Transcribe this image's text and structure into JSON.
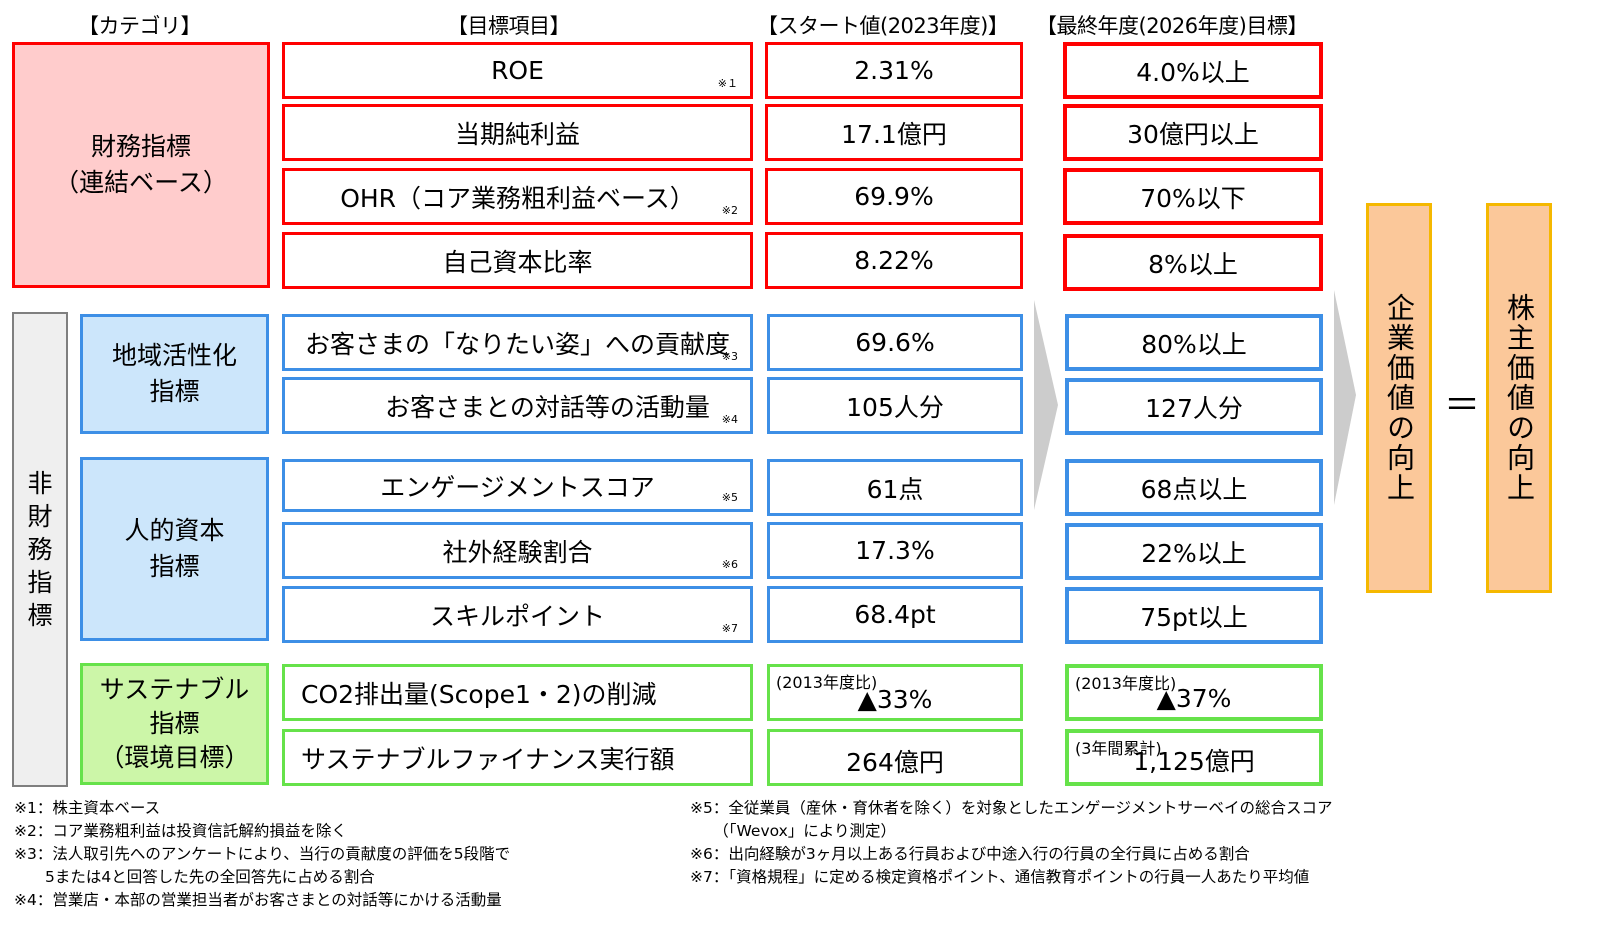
{
  "headers": {
    "category": "【カテゴリ】",
    "item": "【目標項目】",
    "start": "【スタート値(2023年度)】",
    "target": "【最終年度(2026年度)目標】"
  },
  "categories": {
    "financial": "財務指標\n（連結ベース）",
    "nonfinancial": "非\n財\n務\n指\n標",
    "regional": "地域活性化\n指標",
    "human": "人的資本\n指標",
    "sustainable": "サステナブル\n指標\n（環境目標）"
  },
  "rows": [
    {
      "item": "ROE",
      "note": "※１",
      "start": "2.31%",
      "target": "4.0%以上"
    },
    {
      "item": "当期純利益",
      "note": "",
      "start": "17.1億円",
      "target": "30億円以上"
    },
    {
      "item": "OHR（コア業務粗利益ベース）",
      "note": "※2",
      "start": "69.9%",
      "target": "70%以下"
    },
    {
      "item": "自己資本比率",
      "note": "",
      "start": "8.22%",
      "target": "8%以上"
    },
    {
      "item": "お客さまの「なりたい姿」への貢献度",
      "note": "※3",
      "start": "69.6%",
      "target": "80%以上"
    },
    {
      "item": "お客さまとの対話等の活動量",
      "note": "※4",
      "start": "105人分",
      "target": "127人分"
    },
    {
      "item": "エンゲージメントスコア",
      "note": "※5",
      "start": "61点",
      "target": "68点以上"
    },
    {
      "item": "社外経験割合",
      "note": "※6",
      "start": "17.3%",
      "target": "22%以上"
    },
    {
      "item": "スキルポイント",
      "note": "※7",
      "start": "68.4pt",
      "target": "75pt以上"
    },
    {
      "item": "CO2排出量(Scope1・2)の削減",
      "note": "",
      "start_pre": "(2013年度比)",
      "start": "▲33%",
      "target_pre": "(2013年度比)",
      "target": "▲37%"
    },
    {
      "item": "サステナブルファイナンス実行額",
      "note": "",
      "start": "264億円",
      "target_pre": "(3年間累計)",
      "target": "1,125億円"
    }
  ],
  "outcomes": {
    "corporate": "企業価値の向上",
    "equals": "＝",
    "shareholder": "株主価値の向上"
  },
  "footnotes_left": [
    "※1：株主資本ベース",
    "※2：コア業務粗利益は投資信託解約損益を除く",
    "※3：法人取引先へのアンケートにより、当行の貢献度の評価を5段階で",
    "　　5または4と回答した先の全回答先に占める割合",
    "※4：営業店・本部の営業担当者がお客さまとの対話等にかける活動量"
  ],
  "footnotes_right": [
    "※5：全従業員（産休・育休者を除く）を対象としたエンゲージメントサーベイの総合スコア",
    "　　（「Wevox」により測定）",
    "※6：出向経験が3ヶ月以上ある行員および中途入行の行員の全行員に占める割合",
    "※7：「資格規程」に定める検定資格ポイント、通信教育ポイントの行員一人あたり平均値"
  ],
  "colors": {
    "financial_fill": "#ffcccc",
    "financial_border": "#ff0000",
    "nonfin_fill": "#efefef",
    "regional_fill": "#cce6fb",
    "blue_border": "#3d8fe6",
    "sustain_fill": "#ccf6a8",
    "green_border": "#66e24a",
    "outcome_fill": "#fbc89a",
    "outcome_border": "#f5b800",
    "arrow": "#cccccc"
  }
}
